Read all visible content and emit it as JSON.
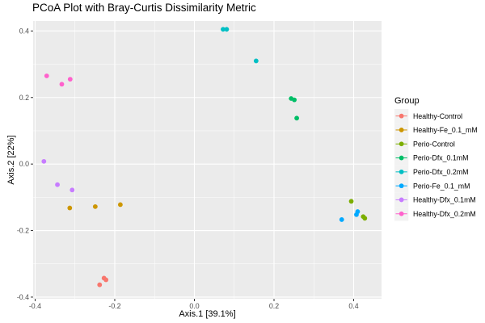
{
  "chart_data": {
    "type": "scatter",
    "title": "PCoA Plot with Bray-Curtis Dissimilarity Metric",
    "xlabel": "Axis.1   [39.1%]",
    "ylabel": "Axis.2   [22%]",
    "xlim": [
      -0.405,
      0.47
    ],
    "ylim": [
      -0.405,
      0.43
    ],
    "xticks": [
      -0.4,
      -0.2,
      0.0,
      0.2,
      0.4
    ],
    "yticks": [
      -0.4,
      -0.2,
      0.0,
      0.2,
      0.4
    ],
    "xtick_labels": [
      "-0.4",
      "-0.2",
      "0.0",
      "0.2",
      "0.4"
    ],
    "ytick_labels": [
      "-0.4",
      "-0.2",
      "0.0",
      "0.2",
      "0.4"
    ],
    "grid": true,
    "legend_position": "right",
    "legend_title": "Group",
    "panel_background": "#EBEBEB",
    "series": [
      {
        "name": "Healthy-Control",
        "color": "#F8766D",
        "x": [
          -0.227,
          -0.222,
          -0.238
        ],
        "y": [
          -0.343,
          -0.348,
          -0.363
        ]
      },
      {
        "name": "Healthy-Fe_0.1_mM",
        "color": "#CD9600",
        "x": [
          -0.313,
          -0.249,
          -0.186
        ],
        "y": [
          -0.132,
          -0.128,
          -0.122
        ]
      },
      {
        "name": "Perio-Control",
        "color": "#7CAE00",
        "x": [
          0.394,
          0.424,
          0.428
        ],
        "y": [
          -0.112,
          -0.158,
          -0.163
        ]
      },
      {
        "name": "Perio-Dfx_0.1mM",
        "color": "#00BE67",
        "x": [
          0.243,
          0.251,
          0.257
        ],
        "y": [
          0.197,
          0.193,
          0.138
        ]
      },
      {
        "name": "Perio-Dfx_0.2mM",
        "color": "#00BFC4",
        "x": [
          0.072,
          0.081,
          0.155
        ],
        "y": [
          0.405,
          0.405,
          0.31
        ]
      },
      {
        "name": "Perio-Fe_0.1_mM",
        "color": "#00A9FF",
        "x": [
          0.41,
          0.407,
          0.37
        ],
        "y": [
          -0.143,
          -0.152,
          -0.167
        ]
      },
      {
        "name": "Healthy-Dfx_0.1mM",
        "color": "#C77CFF",
        "x": [
          -0.378,
          -0.344,
          -0.307
        ],
        "y": [
          0.008,
          -0.062,
          -0.078
        ]
      },
      {
        "name": "Healthy-Dfx_0.2mM",
        "color": "#FF61CC",
        "x": [
          -0.371,
          -0.333,
          -0.312
        ],
        "y": [
          0.265,
          0.24,
          0.255
        ]
      }
    ]
  }
}
